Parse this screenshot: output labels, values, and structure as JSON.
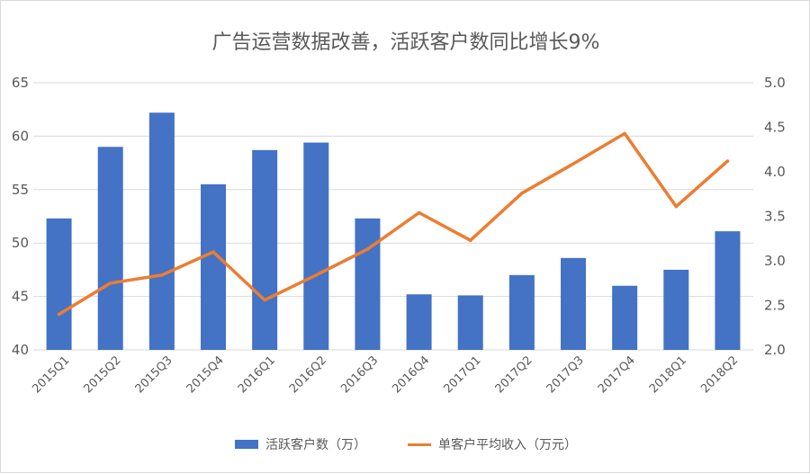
{
  "colors": {
    "bar": "#4472c4",
    "line": "#ed7d31",
    "grid": "#d9d9d9",
    "text": "#595959"
  },
  "chart_data": {
    "type": "bar",
    "title": "广告运营数据改善，活跃客户数同比增长9%",
    "categories": [
      "2015Q1",
      "2015Q2",
      "2015Q3",
      "2015Q4",
      "2016Q1",
      "2016Q2",
      "2016Q3",
      "2016Q4",
      "2017Q1",
      "2017Q2",
      "2017Q3",
      "2017Q4",
      "2018Q1",
      "2018Q2"
    ],
    "series": [
      {
        "name": "活跃客户数（万）",
        "type": "bar",
        "axis": "left",
        "values": [
          52.3,
          59.0,
          62.2,
          55.5,
          58.7,
          59.4,
          52.3,
          45.2,
          45.1,
          47.0,
          48.6,
          46.0,
          47.5,
          51.1
        ]
      },
      {
        "name": "单客户平均收入（万元）",
        "type": "line",
        "axis": "right",
        "values": [
          2.4,
          2.75,
          2.84,
          3.1,
          2.56,
          2.84,
          3.13,
          3.54,
          3.23,
          3.76,
          4.09,
          4.43,
          3.61,
          4.12
        ]
      }
    ],
    "y_left": {
      "min": 40,
      "max": 65,
      "ticks": [
        "40",
        "45",
        "50",
        "55",
        "60",
        "65"
      ]
    },
    "y_right": {
      "min": 2.0,
      "max": 5.0,
      "ticks": [
        "2.0",
        "2.5",
        "3.0",
        "3.5",
        "4.0",
        "4.5",
        "5.0"
      ]
    },
    "grid": true,
    "legend_position": "bottom"
  }
}
